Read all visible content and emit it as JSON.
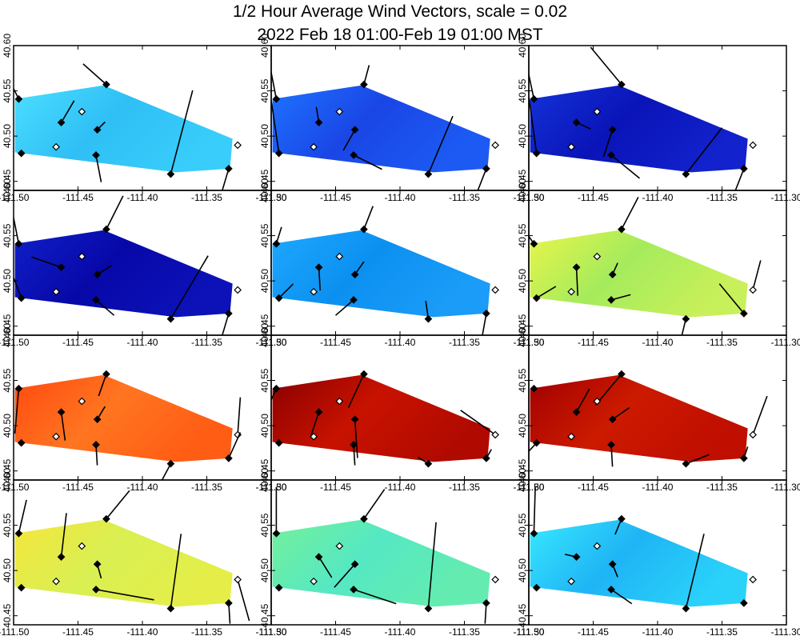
{
  "title_line1": "1/2 Hour Average Wind Vectors, scale =  0.02",
  "title_line2": "2022 Feb 18 01:00-Feb 19 01:00 MST",
  "chart_data": {
    "type": "vector-field-map",
    "grid": {
      "rows": 4,
      "cols": 3
    },
    "xlim": [
      -111.5,
      -111.3
    ],
    "ylim": [
      40.44,
      40.6
    ],
    "x_ticks": [
      -111.5,
      -111.45,
      -111.4,
      -111.35,
      -111.3
    ],
    "x_tick_labels": [
      "-111.50",
      "-111.45",
      "-111.40",
      "-111.35",
      "-111.30"
    ],
    "y_ticks": [
      40.45,
      40.5,
      40.55,
      40.6
    ],
    "y_tick_labels": [
      "40.45",
      "40.50",
      "40.55",
      "40.60"
    ],
    "region_polygon": [
      [
        -111.499,
        40.541
      ],
      [
        -111.43,
        40.556
      ],
      [
        -111.33,
        40.497
      ],
      [
        -111.332,
        40.464
      ],
      [
        -111.374,
        40.46
      ],
      [
        -111.499,
        40.482
      ]
    ],
    "stations": [
      {
        "lon": -111.496,
        "lat": 40.541,
        "filled": true
      },
      {
        "lon": -111.428,
        "lat": 40.557,
        "filled": true
      },
      {
        "lon": -111.447,
        "lat": 40.527,
        "filled": false
      },
      {
        "lon": -111.463,
        "lat": 40.515,
        "filled": true
      },
      {
        "lon": -111.435,
        "lat": 40.507,
        "filled": true
      },
      {
        "lon": -111.494,
        "lat": 40.481,
        "filled": true
      },
      {
        "lon": -111.467,
        "lat": 40.488,
        "filled": false
      },
      {
        "lon": -111.436,
        "lat": 40.479,
        "filled": true
      },
      {
        "lon": -111.378,
        "lat": 40.458,
        "filled": true
      },
      {
        "lon": -111.326,
        "lat": 40.49,
        "filled": false
      },
      {
        "lon": -111.333,
        "lat": 40.464,
        "filled": true
      }
    ],
    "panels": [
      {
        "label": "panel-1",
        "colors": [
          "#4cdfff",
          "#2fbff5",
          "#38cdfb"
        ],
        "vectors": [
          [
            -0.012,
            0.024
          ],
          [
            -0.018,
            0.016
          ],
          [
            0,
            0
          ],
          [
            0.01,
            0.017
          ],
          [
            0.006,
            0.006
          ],
          [
            0,
            0
          ],
          [
            0,
            0
          ],
          [
            0.004,
            -0.021
          ],
          [
            0.017,
            0.065
          ],
          [
            0,
            0
          ],
          [
            -0.005,
            -0.017
          ]
        ]
      },
      {
        "label": "panel-2",
        "colors": [
          "#1e73ff",
          "#1a46e6",
          "#1c5af3"
        ],
        "vectors": [
          [
            -0.007,
            0.036
          ],
          [
            0.004,
            0.015
          ],
          [
            0,
            0
          ],
          [
            -0.002,
            0.012
          ],
          [
            -0.009,
            -0.016
          ],
          [
            -0.006,
            0.041
          ],
          [
            0,
            0
          ],
          [
            0.022,
            -0.011
          ],
          [
            0.019,
            0.045
          ],
          [
            0,
            0
          ],
          [
            -0.007,
            -0.018
          ]
        ]
      },
      {
        "label": "panel-3",
        "colors": [
          "#1432d8",
          "#0a14b8",
          "#1222cc"
        ],
        "vectors": [
          [
            -0.007,
            0.033
          ],
          [
            -0.024,
            0.029
          ],
          [
            0,
            0
          ],
          [
            0.011,
            -0.005
          ],
          [
            -0.007,
            -0.021
          ],
          [
            -0.006,
            0.044
          ],
          [
            0,
            0
          ],
          [
            0.022,
            -0.018
          ],
          [
            0.028,
            0.036
          ],
          [
            0,
            0
          ],
          [
            -0.007,
            -0.018
          ]
        ]
      },
      {
        "label": "panel-4",
        "colors": [
          "#0f20c8",
          "#0808a8",
          "#0c12b8"
        ],
        "vectors": [
          [
            -0.007,
            0.035
          ],
          [
            0.013,
            0.026
          ],
          [
            0,
            0
          ],
          [
            -0.023,
            0.008
          ],
          [
            0.011,
            0.007
          ],
          [
            -0.01,
            0.026
          ],
          [
            0,
            0
          ],
          [
            0.014,
            -0.012
          ],
          [
            0.029,
            0.049
          ],
          [
            0,
            0
          ],
          [
            -0.005,
            -0.017
          ]
        ]
      },
      {
        "label": "panel-5",
        "colors": [
          "#1ea8ff",
          "#0c90f0",
          "#1a9cf8"
        ],
        "vectors": [
          [
            0.004,
            0.013
          ],
          [
            0.007,
            0.018
          ],
          [
            0,
            0
          ],
          [
            0.001,
            -0.018
          ],
          [
            0.007,
            0.01
          ],
          [
            0.011,
            0.011
          ],
          [
            0,
            0
          ],
          [
            -0.014,
            -0.012
          ],
          [
            -0.002,
            0.014
          ],
          [
            0,
            0
          ],
          [
            -0.003,
            -0.017
          ]
        ]
      },
      {
        "label": "panel-6",
        "colors": [
          "#e8f54a",
          "#a5eb5c",
          "#c8f05a"
        ],
        "vectors": [
          [
            -0.018,
            0.026
          ],
          [
            0.013,
            0.025
          ],
          [
            0,
            0
          ],
          [
            0.001,
            -0.022
          ],
          [
            0.004,
            0.009
          ],
          [
            0.015,
            0.009
          ],
          [
            0,
            0
          ],
          [
            0.015,
            0.004
          ],
          [
            -0.004,
            -0.016
          ],
          [
            0.006,
            0.023
          ],
          [
            -0.019,
            0.023
          ]
        ]
      },
      {
        "label": "panel-7",
        "colors": [
          "#ff4a10",
          "#ff7520",
          "#ff5c14"
        ],
        "vectors": [
          [
            -0.003,
            -0.035
          ],
          [
            -0.006,
            -0.017
          ],
          [
            0,
            0
          ],
          [
            0.003,
            -0.022
          ],
          [
            0.006,
            0.01
          ],
          [
            0,
            0
          ],
          [
            0,
            0
          ],
          [
            0.001,
            -0.016
          ],
          [
            -0.009,
            -0.017
          ],
          [
            0.002,
            0.029
          ],
          [
            0.009,
            0.02
          ]
        ]
      },
      {
        "label": "panel-8",
        "colors": [
          "#8a0000",
          "#c81200",
          "#b00a00"
        ],
        "vectors": [
          [
            -0.017,
            -0.037
          ],
          [
            -0.012,
            -0.026
          ],
          [
            0,
            0
          ],
          [
            -0.006,
            -0.018
          ],
          [
            0.002,
            -0.03
          ],
          [
            0,
            0
          ],
          [
            0,
            0
          ],
          [
            0.001,
            -0.016
          ],
          [
            -0.008,
            0.005
          ],
          [
            -0.027,
            0.019
          ],
          [
            0.004,
            0.007
          ]
        ]
      },
      {
        "label": "panel-9",
        "colors": [
          "#a00000",
          "#cc1a00",
          "#c00e00"
        ],
        "vectors": [
          [
            0,
            0
          ],
          [
            -0.02,
            -0.024
          ],
          [
            0,
            0
          ],
          [
            0.01,
            0.018
          ],
          [
            0.013,
            0.009
          ],
          [
            -0.036,
            -0.039
          ],
          [
            0,
            0
          ],
          [
            0.001,
            -0.017
          ],
          [
            0.018,
            0.007
          ],
          [
            0.011,
            0.03
          ],
          [
            0.003,
            0.009
          ]
        ]
      },
      {
        "label": "panel-10",
        "colors": [
          "#f5e63c",
          "#d9ef52",
          "#e5ee48"
        ],
        "vectors": [
          [
            0.006,
            0.026
          ],
          [
            0.018,
            0.022
          ],
          [
            0,
            0
          ],
          [
            0.004,
            0.034
          ],
          [
            0.003,
            -0.011
          ],
          [
            0,
            0
          ],
          [
            0,
            0
          ],
          [
            0.045,
            -0.008
          ],
          [
            0.008,
            0.058
          ],
          [
            0.009,
            -0.032
          ],
          [
            0.001,
            -0.016
          ]
        ]
      },
      {
        "label": "panel-11",
        "colors": [
          "#74f09a",
          "#55e8c3",
          "#64ecb0"
        ],
        "vectors": [
          [
            0,
            0.036
          ],
          [
            0.016,
            0.023
          ],
          [
            0,
            0
          ],
          [
            0.01,
            -0.016
          ],
          [
            -0.016,
            -0.018
          ],
          [
            0,
            0
          ],
          [
            0,
            0
          ],
          [
            0.033,
            -0.011
          ],
          [
            0.006,
            0.067
          ],
          [
            0,
            0
          ],
          [
            -0.001,
            -0.016
          ]
        ]
      },
      {
        "label": "panel-12",
        "colors": [
          "#38e8ff",
          "#1fb4f5",
          "#2ad2fa"
        ],
        "vectors": [
          [
            0.001,
            0.036
          ],
          [
            -0.005,
            -0.012
          ],
          [
            0,
            0
          ],
          [
            -0.009,
            0.002
          ],
          [
            0.004,
            -0.01
          ],
          [
            0,
            0
          ],
          [
            0,
            0
          ],
          [
            0.016,
            -0.011
          ],
          [
            0.014,
            0.058
          ],
          [
            0,
            0
          ],
          [
            0,
            0
          ]
        ]
      }
    ]
  }
}
